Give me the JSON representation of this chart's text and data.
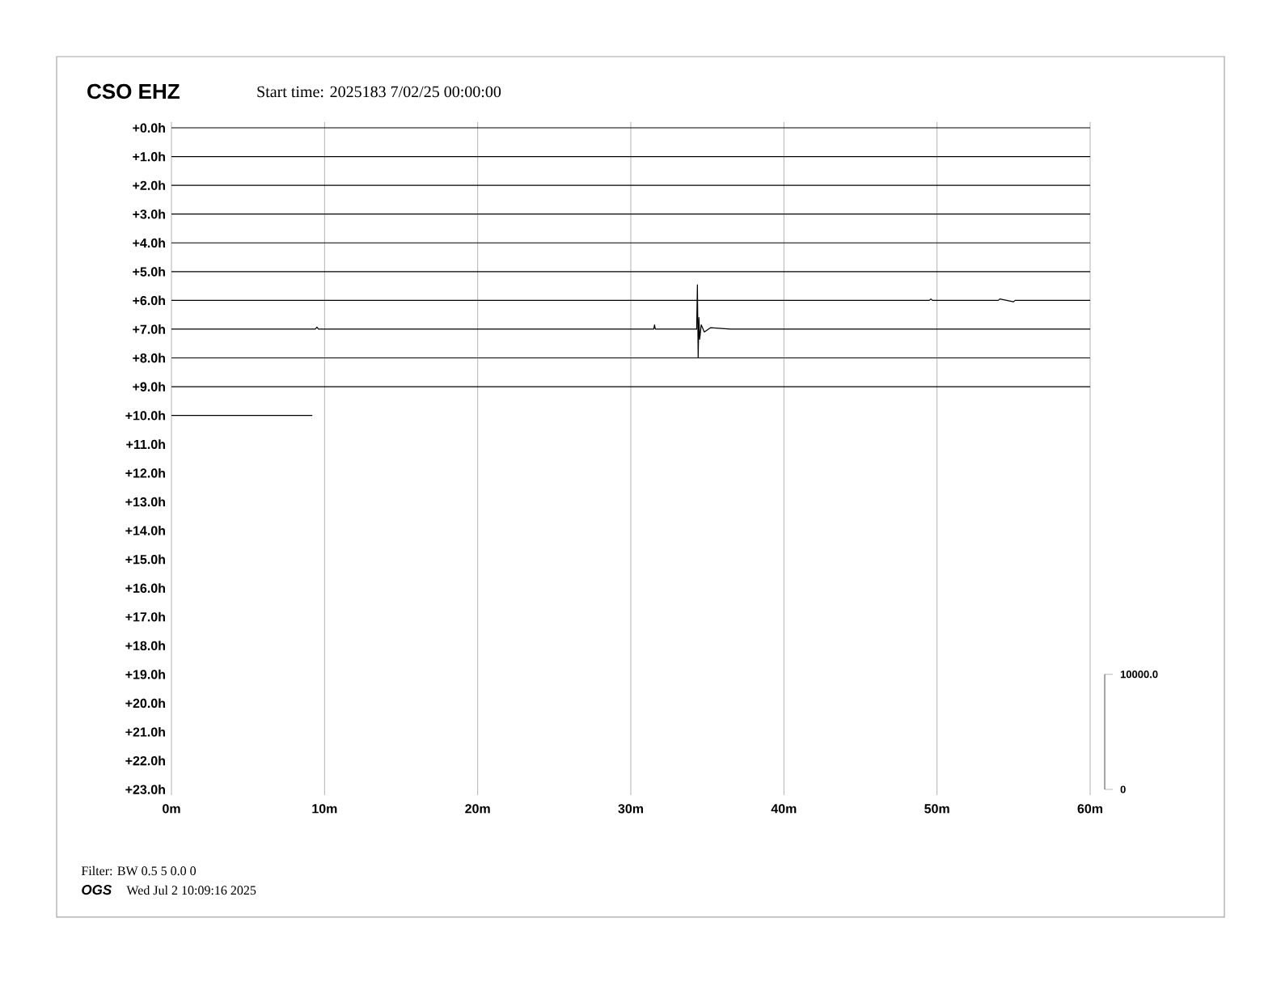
{
  "chart_data": {
    "type": "line",
    "title": "CSO EHZ",
    "subtitle": "Start time: 2025183  7/02/25 00:00:00",
    "annotations": [
      "Filter: BW 0.5 5 0.0 0",
      "OGS",
      "Wed Jul  2 10:09:16 2025"
    ],
    "xlim": [
      0,
      60
    ],
    "xticks": [
      {
        "value": 0,
        "label": "0m"
      },
      {
        "value": 10,
        "label": "10m"
      },
      {
        "value": 20,
        "label": "20m"
      },
      {
        "value": 30,
        "label": "30m"
      },
      {
        "value": 40,
        "label": "40m"
      },
      {
        "value": 50,
        "label": "50m"
      },
      {
        "value": 60,
        "label": "60m"
      }
    ],
    "ylim": [
      23.2,
      -0.2
    ],
    "yticks": [
      {
        "value": 0,
        "label": "+0.0h"
      },
      {
        "value": 1,
        "label": "+1.0h"
      },
      {
        "value": 2,
        "label": "+2.0h"
      },
      {
        "value": 3,
        "label": "+3.0h"
      },
      {
        "value": 4,
        "label": "+4.0h"
      },
      {
        "value": 5,
        "label": "+5.0h"
      },
      {
        "value": 6,
        "label": "+6.0h"
      },
      {
        "value": 7,
        "label": "+7.0h"
      },
      {
        "value": 8,
        "label": "+8.0h"
      },
      {
        "value": 9,
        "label": "+9.0h"
      },
      {
        "value": 10,
        "label": "+10.0h"
      },
      {
        "value": 11,
        "label": "+11.0h"
      },
      {
        "value": 12,
        "label": "+12.0h"
      },
      {
        "value": 13,
        "label": "+13.0h"
      },
      {
        "value": 14,
        "label": "+14.0h"
      },
      {
        "value": 15,
        "label": "+15.0h"
      },
      {
        "value": 16,
        "label": "+16.0h"
      },
      {
        "value": 17,
        "label": "+17.0h"
      },
      {
        "value": 18,
        "label": "+18.0h"
      },
      {
        "value": 19,
        "label": "+19.0h"
      },
      {
        "value": 20,
        "label": "+20.0h"
      },
      {
        "value": 21,
        "label": "+21.0h"
      },
      {
        "value": 22,
        "label": "+22.0h"
      },
      {
        "value": 23,
        "label": "+23.0h"
      }
    ],
    "y2lim": [
      -500,
      58000
    ],
    "y2ticks": [
      {
        "value": 0,
        "label": "0"
      },
      {
        "value": 10000,
        "label": "10000.0"
      }
    ],
    "grid": "x",
    "series": [
      {
        "color": "#000000",
        "x": [
          0,
          60
        ],
        "values": [
          0,
          0
        ]
      },
      {
        "color": "#000000",
        "x": [
          0,
          60
        ],
        "values": [
          1,
          1
        ]
      },
      {
        "color": "#000000",
        "x": [
          0,
          60
        ],
        "values": [
          2,
          2
        ]
      },
      {
        "color": "#000000",
        "x": [
          0,
          60
        ],
        "values": [
          3,
          3
        ]
      },
      {
        "color": "#000000",
        "x": [
          0,
          60
        ],
        "values": [
          4,
          4
        ]
      },
      {
        "color": "#000000",
        "x": [
          0,
          60
        ],
        "values": [
          5,
          5
        ]
      },
      {
        "color": "#000000",
        "x": [
          0,
          49.5,
          49.6,
          49.7,
          54.0,
          54.1,
          55.0,
          55.1,
          60
        ],
        "values": [
          6,
          6,
          5.95,
          6,
          6,
          5.95,
          6.05,
          6,
          6
        ]
      },
      {
        "color": "#000000",
        "x": [
          0,
          9.4,
          9.5,
          9.6,
          31.5,
          31.55,
          31.6,
          34.3,
          34.35,
          34.4,
          34.45,
          34.5,
          34.6,
          34.8,
          35.2,
          36.5,
          60
        ],
        "values": [
          7,
          7,
          6.93,
          7,
          7,
          6.85,
          7,
          7,
          5.46,
          7.99,
          6.6,
          7.35,
          6.85,
          7.1,
          6.95,
          7,
          7
        ]
      },
      {
        "color": "#000000",
        "x": [
          0,
          60
        ],
        "values": [
          8,
          8
        ]
      },
      {
        "color": "#000000",
        "x": [
          0,
          60
        ],
        "values": [
          9,
          9
        ]
      },
      {
        "color": "#000000",
        "x": [
          0,
          9.2
        ],
        "values": [
          10,
          10
        ]
      }
    ]
  }
}
